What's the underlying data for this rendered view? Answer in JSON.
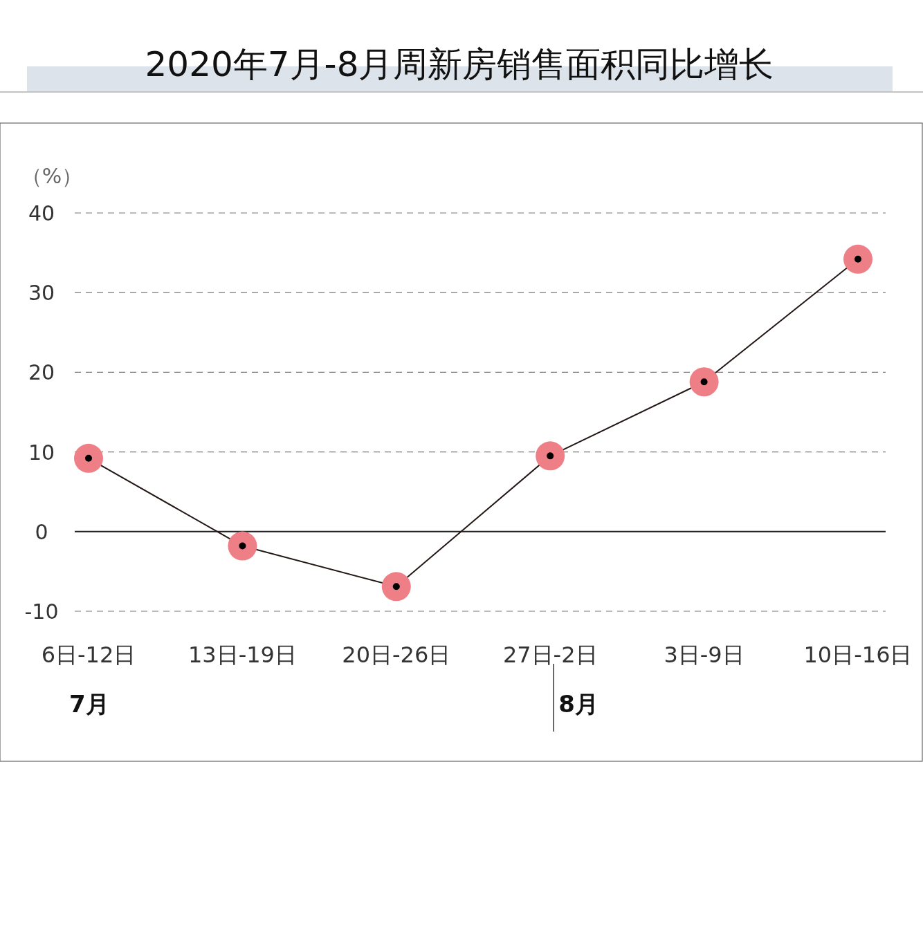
{
  "chart_data": {
    "type": "line",
    "title": "2020年7月-8月周新房销售面积同比增长",
    "ylabel": "（%）",
    "categories": [
      "6日-12日",
      "13日-19日",
      "20日-26日",
      "27日-2日",
      "3日-9日",
      "10日-16日"
    ],
    "series": [
      {
        "color": "#ee7f87",
        "values": [
          9.2,
          -1.8,
          -6.9,
          9.5,
          18.8,
          34.2
        ]
      }
    ],
    "ylim": [
      -10,
      40
    ],
    "yticks": [
      -10,
      0,
      10,
      20,
      30,
      40
    ],
    "grid": "y",
    "marker": "circle",
    "line_style": "solid",
    "annotations": [
      "7月",
      "8月"
    ]
  }
}
